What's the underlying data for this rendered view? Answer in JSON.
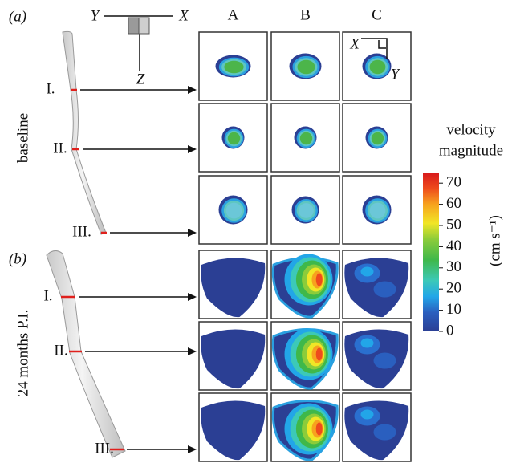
{
  "panel_a": {
    "label": "(a)",
    "row_title": "baseline",
    "sections": [
      "I.",
      "II.",
      "III."
    ]
  },
  "panel_b": {
    "label": "(b)",
    "row_title": "24 months P.I.",
    "sections": [
      "I.",
      "II.",
      "III."
    ]
  },
  "axes": {
    "y": "Y",
    "x": "X",
    "z": "Z"
  },
  "columns": [
    "A",
    "B",
    "C"
  ],
  "inset_axes": {
    "x": "X",
    "y": "Y"
  },
  "colorbar": {
    "title": [
      "velocity",
      "magnitude"
    ],
    "unit": "(cm s⁻¹)",
    "range": [
      0,
      75
    ],
    "ticks": [
      0,
      10,
      20,
      30,
      40,
      50,
      60,
      70
    ]
  }
}
